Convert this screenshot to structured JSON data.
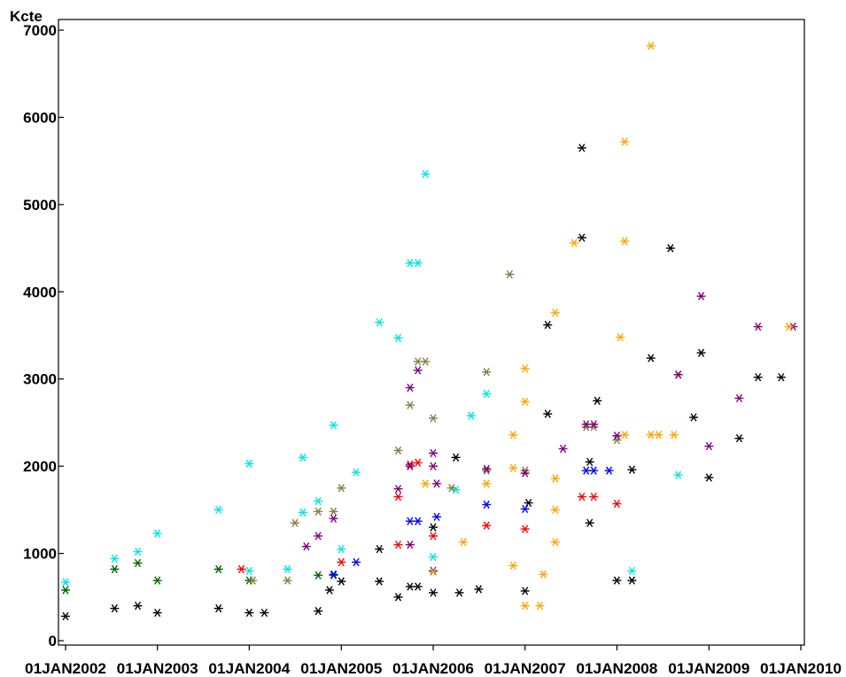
{
  "chart_data": {
    "type": "scatter",
    "title": "",
    "xlabel": "",
    "ylabel": "Kcte",
    "xlim": [
      "2002-01-01",
      "2010-01-01"
    ],
    "ylim": [
      0,
      7000
    ],
    "yticks": [
      0,
      1000,
      2000,
      3000,
      4000,
      5000,
      6000,
      7000
    ],
    "ytick_labels": [
      "0",
      "1000",
      "2000",
      "3000",
      "4000",
      "5000",
      "6000",
      "7000"
    ],
    "xticks": [
      "2002-01-01",
      "2003-01-01",
      "2004-01-01",
      "2005-01-01",
      "2006-01-01",
      "2007-01-01",
      "2008-01-01",
      "2009-01-01",
      "2010-01-01"
    ],
    "xtick_labels": [
      "01JAN2002",
      "01JAN2003",
      "01JAN2004",
      "01JAN2005",
      "01JAN2006",
      "01JAN2007",
      "01JAN2008",
      "01JAN2009",
      "01JAN2010"
    ],
    "marker": "*",
    "grid": false,
    "legend": false,
    "series": [
      {
        "color": "#000000",
        "points": [
          [
            "2002-01-01",
            280
          ],
          [
            "2002-07-15",
            370
          ],
          [
            "2002-10-15",
            400
          ],
          [
            "2003-01-01",
            320
          ],
          [
            "2003-09-01",
            370
          ],
          [
            "2004-01-01",
            320
          ],
          [
            "2004-03-01",
            320
          ],
          [
            "2004-10-01",
            340
          ],
          [
            "2004-11-15",
            580
          ],
          [
            "2005-01-01",
            680
          ],
          [
            "2005-06-01",
            1050
          ],
          [
            "2005-06-01",
            680
          ],
          [
            "2005-08-15",
            500
          ],
          [
            "2005-10-01",
            620
          ],
          [
            "2005-11-01",
            620
          ],
          [
            "2006-01-01",
            550
          ],
          [
            "2006-01-01",
            1300
          ],
          [
            "2006-04-01",
            2100
          ],
          [
            "2006-04-15",
            550
          ],
          [
            "2006-07-01",
            590
          ],
          [
            "2007-01-01",
            570
          ],
          [
            "2007-01-15",
            1580
          ],
          [
            "2007-04-01",
            3620
          ],
          [
            "2007-04-01",
            2600
          ],
          [
            "2007-08-15",
            4620
          ],
          [
            "2007-08-15",
            5650
          ],
          [
            "2007-09-15",
            2050
          ],
          [
            "2007-09-15",
            1350
          ],
          [
            "2007-10-15",
            2750
          ],
          [
            "2008-01-01",
            690
          ],
          [
            "2008-03-01",
            1960
          ],
          [
            "2008-03-01",
            690
          ],
          [
            "2008-05-15",
            3240
          ],
          [
            "2008-08-01",
            4500
          ],
          [
            "2008-11-01",
            2560
          ],
          [
            "2008-12-01",
            3300
          ],
          [
            "2009-01-01",
            1870
          ],
          [
            "2009-05-01",
            2320
          ],
          [
            "2009-07-15",
            3020
          ],
          [
            "2009-10-15",
            3020
          ]
        ]
      },
      {
        "color": "#00e5e5",
        "points": [
          [
            "2002-01-01",
            670
          ],
          [
            "2002-07-15",
            940
          ],
          [
            "2002-10-15",
            1020
          ],
          [
            "2003-01-01",
            1230
          ],
          [
            "2003-09-01",
            1500
          ],
          [
            "2004-01-01",
            2030
          ],
          [
            "2004-01-01",
            800
          ],
          [
            "2004-06-01",
            820
          ],
          [
            "2004-08-01",
            2100
          ],
          [
            "2004-08-01",
            1470
          ],
          [
            "2004-10-01",
            1600
          ],
          [
            "2004-12-01",
            2470
          ],
          [
            "2005-01-01",
            1050
          ],
          [
            "2005-03-01",
            1930
          ],
          [
            "2005-06-01",
            3650
          ],
          [
            "2005-08-15",
            3470
          ],
          [
            "2005-10-01",
            4330
          ],
          [
            "2005-11-01",
            4330
          ],
          [
            "2005-12-01",
            5350
          ],
          [
            "2006-01-01",
            960
          ],
          [
            "2006-04-01",
            1730
          ],
          [
            "2006-06-01",
            2580
          ],
          [
            "2006-08-01",
            2830
          ],
          [
            "2008-03-01",
            800
          ],
          [
            "2008-09-01",
            1900
          ]
        ]
      },
      {
        "color": "#006400",
        "points": [
          [
            "2002-01-01",
            580
          ],
          [
            "2002-07-15",
            820
          ],
          [
            "2002-10-15",
            890
          ],
          [
            "2003-01-01",
            690
          ],
          [
            "2003-09-01",
            820
          ],
          [
            "2004-01-01",
            690
          ],
          [
            "2004-10-01",
            750
          ],
          [
            "2004-12-01",
            750
          ]
        ]
      },
      {
        "color": "#ff0000",
        "points": [
          [
            "2003-12-01",
            820
          ],
          [
            "2005-01-01",
            900
          ],
          [
            "2005-08-15",
            1650
          ],
          [
            "2005-08-15",
            1100
          ],
          [
            "2005-10-01",
            2020
          ],
          [
            "2005-11-01",
            2040
          ],
          [
            "2006-01-01",
            1200
          ],
          [
            "2006-08-01",
            1320
          ],
          [
            "2007-01-01",
            1280
          ],
          [
            "2007-08-15",
            1650
          ],
          [
            "2007-10-01",
            1650
          ],
          [
            "2008-01-01",
            1570
          ],
          [
            "2008-09-01",
            3050
          ]
        ]
      },
      {
        "color": "#808040",
        "points": [
          [
            "2004-01-15",
            690
          ],
          [
            "2004-06-01",
            690
          ],
          [
            "2004-07-01",
            1350
          ],
          [
            "2004-10-01",
            1480
          ],
          [
            "2004-12-01",
            1480
          ],
          [
            "2005-01-01",
            1750
          ],
          [
            "2005-08-15",
            2180
          ],
          [
            "2005-10-01",
            2700
          ],
          [
            "2005-11-01",
            3200
          ],
          [
            "2005-12-01",
            3200
          ],
          [
            "2006-01-01",
            2550
          ],
          [
            "2006-03-15",
            1750
          ],
          [
            "2006-08-01",
            3080
          ],
          [
            "2006-08-01",
            1950
          ],
          [
            "2006-11-01",
            4200
          ],
          [
            "2007-01-01",
            1950
          ],
          [
            "2007-09-01",
            2450
          ],
          [
            "2007-10-01",
            2450
          ],
          [
            "2008-01-01",
            2300
          ]
        ]
      },
      {
        "color": "#0000ff",
        "points": [
          [
            "2004-12-01",
            760
          ],
          [
            "2005-03-01",
            900
          ],
          [
            "2005-10-01",
            1370
          ],
          [
            "2005-11-01",
            1370
          ],
          [
            "2006-01-01",
            800
          ],
          [
            "2006-01-15",
            1420
          ],
          [
            "2006-08-01",
            1560
          ],
          [
            "2007-01-01",
            1510
          ],
          [
            "2007-09-01",
            1950
          ],
          [
            "2007-10-01",
            1950
          ],
          [
            "2007-12-01",
            1950
          ]
        ]
      },
      {
        "color": "#800080",
        "points": [
          [
            "2004-08-15",
            1080
          ],
          [
            "2004-10-01",
            1200
          ],
          [
            "2004-12-01",
            1400
          ],
          [
            "2005-08-15",
            1740
          ],
          [
            "2005-10-01",
            1100
          ],
          [
            "2005-10-01",
            2900
          ],
          [
            "2005-10-01",
            2000
          ],
          [
            "2005-11-01",
            3100
          ],
          [
            "2006-01-01",
            2000
          ],
          [
            "2006-01-01",
            2150
          ],
          [
            "2006-01-15",
            1800
          ],
          [
            "2006-08-01",
            1970
          ],
          [
            "2007-01-01",
            1920
          ],
          [
            "2007-06-01",
            2200
          ],
          [
            "2007-09-01",
            2480
          ],
          [
            "2007-10-01",
            2480
          ],
          [
            "2008-01-01",
            2350
          ],
          [
            "2008-09-01",
            3050
          ],
          [
            "2008-12-01",
            3950
          ],
          [
            "2009-01-01",
            2230
          ],
          [
            "2009-05-01",
            2780
          ],
          [
            "2009-07-15",
            3600
          ],
          [
            "2009-12-01",
            3600
          ]
        ]
      },
      {
        "color": "#ffa500",
        "points": [
          [
            "2006-01-01",
            790
          ],
          [
            "2005-12-01",
            1800
          ],
          [
            "2006-05-01",
            1130
          ],
          [
            "2006-08-01",
            1800
          ],
          [
            "2006-11-15",
            860
          ],
          [
            "2006-11-15",
            2360
          ],
          [
            "2006-11-15",
            1980
          ],
          [
            "2007-01-01",
            400
          ],
          [
            "2007-01-01",
            2740
          ],
          [
            "2007-01-01",
            3120
          ],
          [
            "2007-03-01",
            400
          ],
          [
            "2007-03-15",
            760
          ],
          [
            "2007-05-01",
            1130
          ],
          [
            "2007-05-01",
            1500
          ],
          [
            "2007-05-01",
            1860
          ],
          [
            "2007-05-01",
            3760
          ],
          [
            "2007-07-15",
            4560
          ],
          [
            "2008-01-15",
            3480
          ],
          [
            "2008-02-01",
            4580
          ],
          [
            "2008-02-01",
            5720
          ],
          [
            "2008-02-01",
            2360
          ],
          [
            "2008-05-15",
            2360
          ],
          [
            "2008-05-15",
            6820
          ],
          [
            "2008-06-15",
            2360
          ],
          [
            "2008-08-15",
            2360
          ],
          [
            "2009-11-15",
            3600
          ]
        ]
      }
    ]
  }
}
